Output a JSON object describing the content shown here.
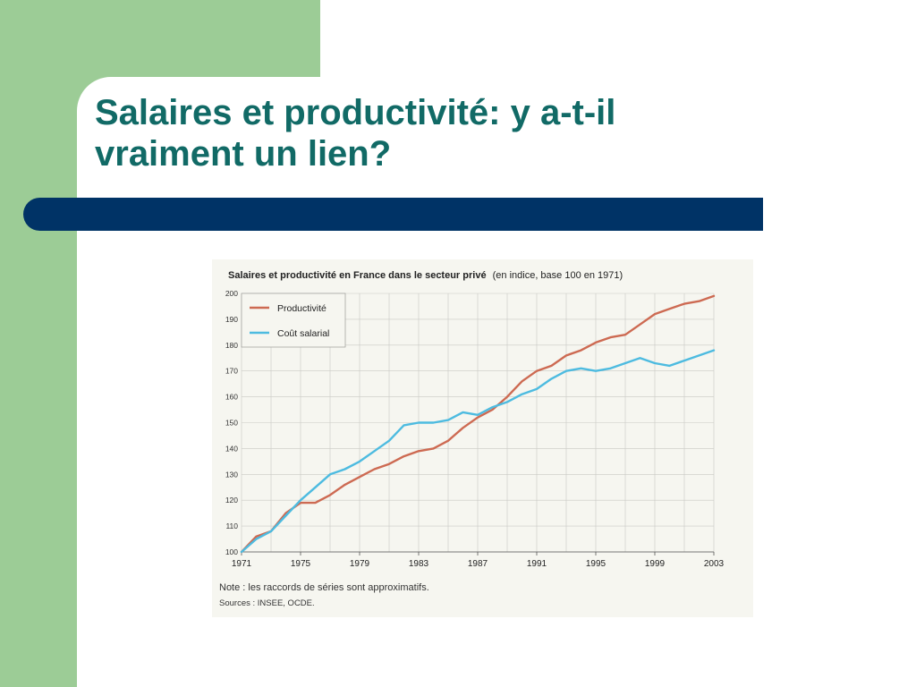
{
  "slide": {
    "title_line1": "Salaires et productivité: y a-t-il",
    "title_line2": "vraiment un lien?",
    "colors": {
      "green_panel": "#9ccc96",
      "title": "#116a66",
      "bar": "#003366"
    }
  },
  "chart_data": {
    "type": "line",
    "title": "Salaires et productivité en France dans le secteur privé",
    "subtitle": "(en indice, base 100 en 1971)",
    "x": [
      1971,
      1972,
      1973,
      1974,
      1975,
      1976,
      1977,
      1978,
      1979,
      1980,
      1981,
      1982,
      1983,
      1984,
      1985,
      1986,
      1987,
      1988,
      1989,
      1990,
      1991,
      1992,
      1993,
      1994,
      1995,
      1996,
      1997,
      1998,
      1999,
      2000,
      2001,
      2002,
      2003
    ],
    "x_tick_labels": [
      "1971",
      "1975",
      "1979",
      "1983",
      "1987",
      "1991",
      "1995",
      "1999",
      "2003"
    ],
    "y_tick_labels": [
      "100",
      "110",
      "120",
      "130",
      "140",
      "150",
      "160",
      "170",
      "180",
      "190",
      "200"
    ],
    "ylim": [
      100,
      200
    ],
    "grid": true,
    "legend_position": "top-left",
    "series": [
      {
        "name": "Productivité",
        "color": "#cd6a52",
        "values": [
          100,
          106,
          108,
          115,
          119,
          119,
          122,
          126,
          129,
          132,
          134,
          137,
          139,
          140,
          143,
          148,
          152,
          155,
          160,
          166,
          170,
          172,
          176,
          178,
          181,
          183,
          184,
          188,
          192,
          194,
          196,
          197,
          199
        ]
      },
      {
        "name": "Coût salarial",
        "color": "#4dbbe0",
        "values": [
          100,
          105,
          108,
          114,
          120,
          125,
          130,
          132,
          135,
          139,
          143,
          149,
          150,
          150,
          151,
          154,
          153,
          156,
          158,
          161,
          163,
          167,
          170,
          171,
          170,
          171,
          173,
          175,
          173,
          172,
          174,
          176,
          178
        ]
      }
    ],
    "note": "Note : les raccords de séries sont approximatifs.",
    "sources": "Sources : INSEE, OCDE."
  }
}
